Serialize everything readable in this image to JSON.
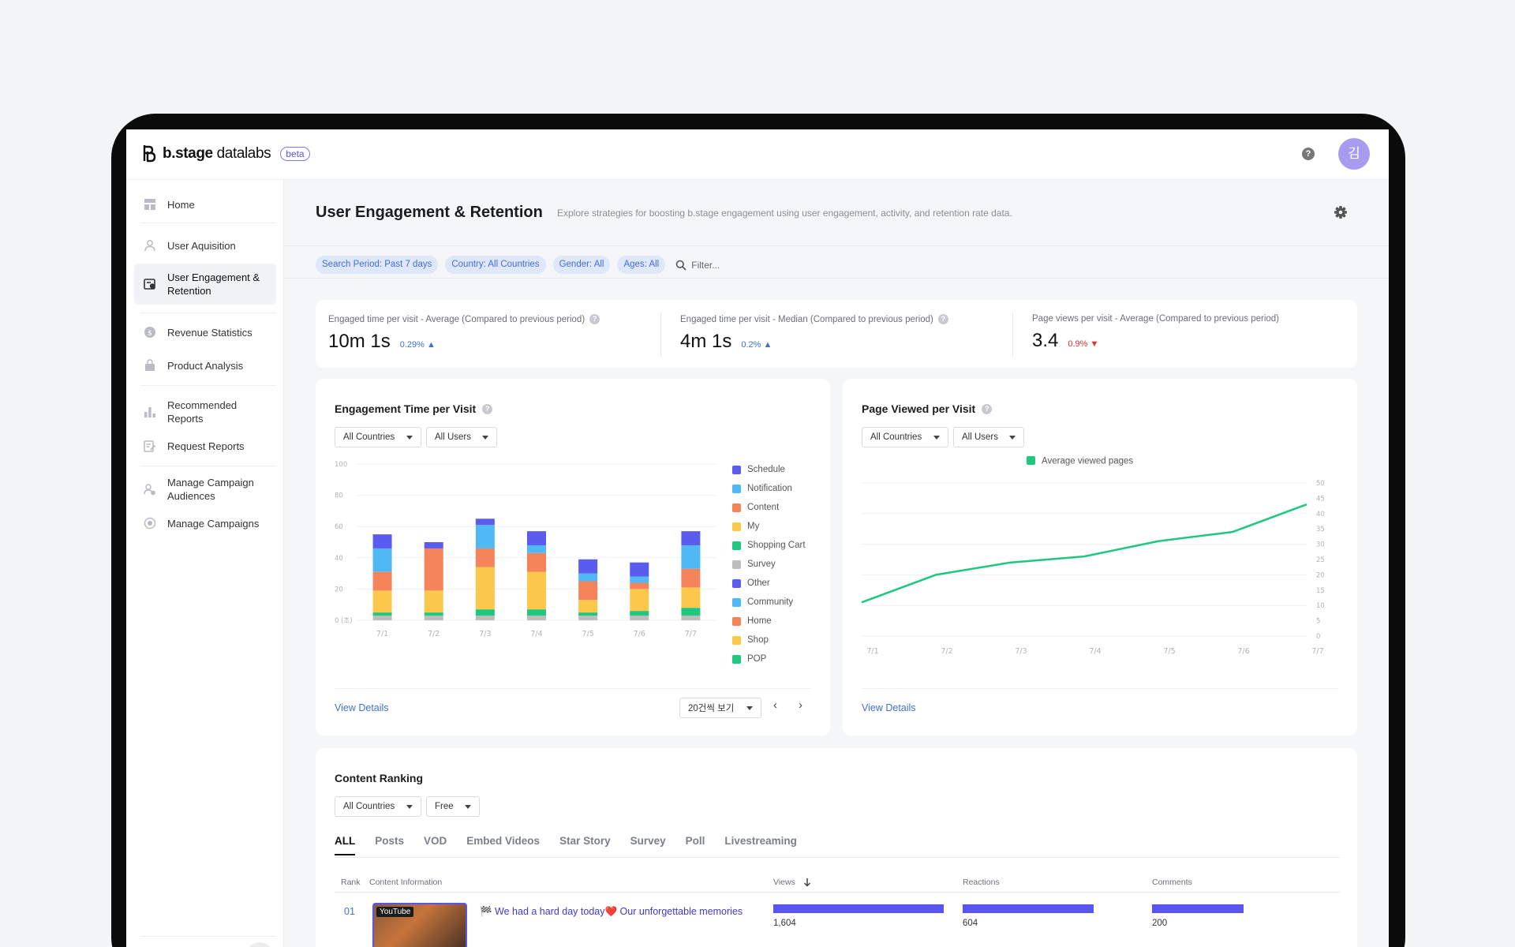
{
  "app": {
    "logo_brand": "b.stage",
    "logo_product": "datalabs",
    "badge": "beta",
    "help": "?",
    "avatar": "김"
  },
  "sidebar": {
    "items": [
      {
        "label": "Home",
        "icon": "dashboard-icon"
      },
      {
        "label": "User Aquisition",
        "icon": "user-icon"
      },
      {
        "label": "User Engagement & Retention",
        "icon": "engagement-icon",
        "active": true
      },
      {
        "label": "Revenue Statistics",
        "icon": "dollar-icon"
      },
      {
        "label": "Product Analysis",
        "icon": "bag-icon"
      },
      {
        "label": "Recommended Reports",
        "icon": "bar-chart-icon"
      },
      {
        "label": "Request Reports",
        "icon": "edit-report-icon"
      },
      {
        "label": "Manage Campaign Audiences",
        "icon": "audience-icon"
      },
      {
        "label": "Manage Campaigns",
        "icon": "target-icon"
      }
    ],
    "collapse": "‹"
  },
  "page": {
    "title": "User Engagement & Retention",
    "description": "Explore strategies for boosting b.stage engagement using user engagement, activity, and retention rate data."
  },
  "filters": {
    "chips": [
      "Search Period: Past 7 days",
      "Country: All Countries",
      "Gender: All",
      "Ages: All"
    ],
    "placeholder": "Filter..."
  },
  "kpis": [
    {
      "label": "Engaged time per visit - Average (Compared to previous period)",
      "value": "10m 1s",
      "delta": "0.29%",
      "direction": "up",
      "help": "?"
    },
    {
      "label": "Engaged time per visit - Median (Compared to previous period)",
      "value": "4m 1s",
      "delta": "0.2%",
      "direction": "up",
      "help": "?"
    },
    {
      "label": "Page views per visit - Average (Compared to previous period)",
      "value": "3.4",
      "delta": "0.9%",
      "direction": "down"
    }
  ],
  "engagement_card": {
    "title": "Engagement Time per Visit",
    "help": "?",
    "country_select": "All Countries",
    "users_select": "All Users",
    "view_details": "View Details",
    "page_size": "20건씩 보기",
    "prev": "‹",
    "next": "›"
  },
  "pageview_card": {
    "title": "Page Viewed per Visit",
    "help": "?",
    "country_select": "All Countries",
    "users_select": "All Users",
    "view_details": "View Details"
  },
  "chart_data": [
    {
      "type": "bar",
      "stacked": true,
      "categories": [
        "7/1",
        "7/2",
        "7/3",
        "7/4",
        "7/5",
        "7/6",
        "7/7"
      ],
      "y_ticks": [
        "0 (초)",
        "20",
        "40",
        "60",
        "80",
        "100"
      ],
      "ylim": [
        0,
        100
      ],
      "legend_position": "right",
      "legend": [
        {
          "name": "Schedule",
          "color": "#5a5cf0"
        },
        {
          "name": "Notification",
          "color": "#4fb8f5"
        },
        {
          "name": "Content",
          "color": "#f5845a"
        },
        {
          "name": "My",
          "color": "#fbc84c"
        },
        {
          "name": "Shopping Cart",
          "color": "#1fc87e"
        },
        {
          "name": "Survey",
          "color": "#bdbdbd"
        },
        {
          "name": "Other",
          "color": "#5a5cf0"
        },
        {
          "name": "Community",
          "color": "#4fb8f5"
        },
        {
          "name": "Home",
          "color": "#f5845a"
        },
        {
          "name": "Shop",
          "color": "#fbc84c"
        },
        {
          "name": "POP",
          "color": "#1fc87e"
        }
      ],
      "segment_colors": [
        "#bdbdbd",
        "#1fc87e",
        "#fbc84c",
        "#f5845a",
        "#4fb8f5",
        "#5a5cf0"
      ],
      "stacks": [
        [
          3,
          2,
          14,
          12,
          15,
          9
        ],
        [
          3,
          2,
          14,
          27,
          0,
          4
        ],
        [
          3,
          4,
          27,
          12,
          15,
          4
        ],
        [
          3,
          4,
          24,
          12,
          5,
          9
        ],
        [
          3,
          2,
          8,
          12,
          5,
          9
        ],
        [
          3,
          3,
          14,
          4,
          4,
          9
        ],
        [
          3,
          5,
          13,
          12,
          15,
          9
        ]
      ]
    },
    {
      "type": "line",
      "x": [
        "7/1",
        "7/2",
        "7/3",
        "7/4",
        "7/5",
        "7/6",
        "7/7"
      ],
      "y_ticks": [
        "0",
        "5",
        "10",
        "15",
        "20",
        "25",
        "30",
        "35",
        "40",
        "45",
        "50"
      ],
      "ylim": [
        0,
        50
      ],
      "legend_position": "top",
      "series": [
        {
          "name": "Average viewed pages",
          "color": "#1fc87e",
          "values": [
            11,
            20,
            24,
            26,
            31,
            34,
            43
          ]
        }
      ]
    }
  ],
  "ranking": {
    "title": "Content Ranking",
    "country_select": "All Countries",
    "plan_select": "Free",
    "tabs": [
      "ALL",
      "Posts",
      "VOD",
      "Embed Videos",
      "Star Story",
      "Survey",
      "Poll",
      "Livestreaming"
    ],
    "columns": {
      "rank": "Rank",
      "info": "Content Information",
      "views": "Views",
      "reactions": "Reactions",
      "comments": "Comments"
    },
    "rows": [
      {
        "rank": "01",
        "badge": "YouTube",
        "title": "🏁 We had a hard day today❤️ Our unforgettable memories",
        "views": 1604,
        "views_label": "1,604",
        "reactions": 604,
        "reactions_label": "604",
        "comments": 200,
        "comments_label": "200"
      }
    ]
  }
}
